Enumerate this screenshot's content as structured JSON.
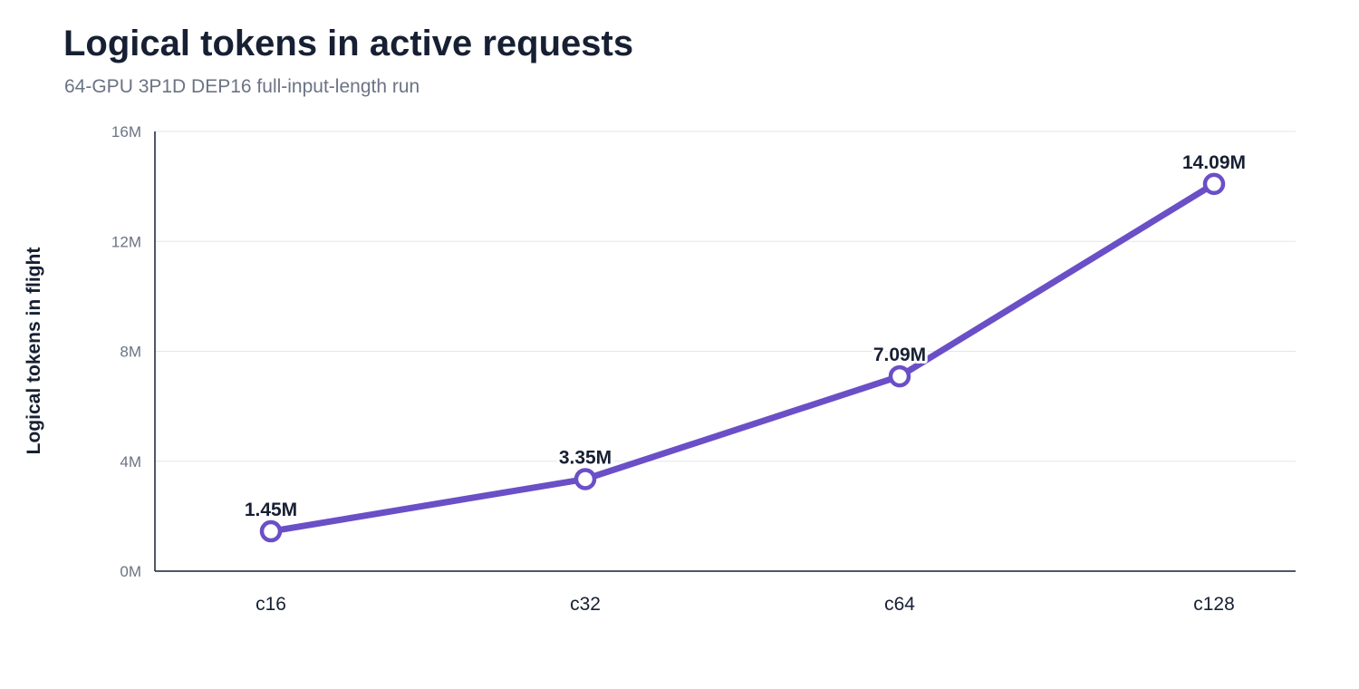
{
  "chart_data": {
    "type": "line",
    "title": "Logical tokens in active requests",
    "subtitle": "64-GPU 3P1D DEP16 full-input-length run",
    "xlabel": "",
    "ylabel": "Logical tokens in flight",
    "categories": [
      "c16",
      "c32",
      "c64",
      "c128"
    ],
    "series": [
      {
        "values": [
          1.45,
          3.35,
          7.09,
          14.09
        ],
        "labels": [
          "1.45M",
          "3.35M",
          "7.09M",
          "14.09M"
        ],
        "color": "#6a4fc7"
      }
    ],
    "ylim": [
      0,
      16
    ],
    "yticks": [
      0,
      4,
      8,
      12,
      16
    ],
    "ytick_labels": [
      "0M",
      "4M",
      "8M",
      "12M",
      "16M"
    ],
    "grid": true,
    "legend": "none"
  }
}
